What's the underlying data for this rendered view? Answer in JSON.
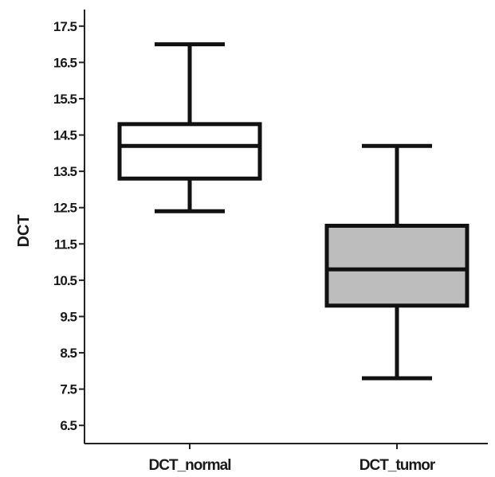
{
  "chart_data": {
    "type": "box",
    "title": "",
    "xlabel": "",
    "ylabel": "DCT",
    "ylim": [
      6.0,
      18.0
    ],
    "yticks": [
      "17.5",
      "16.5",
      "15.5",
      "14.5",
      "13.5",
      "12.5",
      "11.5",
      "10.5",
      "9.5",
      "8.5",
      "7.5",
      "6.5"
    ],
    "categories": [
      "DCT_normal",
      "DCT_tumor"
    ],
    "boxes": [
      {
        "category": "DCT_normal",
        "min": 12.4,
        "q1": 13.3,
        "median": 14.2,
        "q3": 14.8,
        "max": 17.0,
        "fill": "#ffffff"
      },
      {
        "category": "DCT_tumor",
        "min": 7.8,
        "q1": 9.8,
        "median": 10.8,
        "q3": 12.0,
        "max": 14.2,
        "fill": "#bdbdbd"
      }
    ],
    "grid": false,
    "legend": "none"
  }
}
